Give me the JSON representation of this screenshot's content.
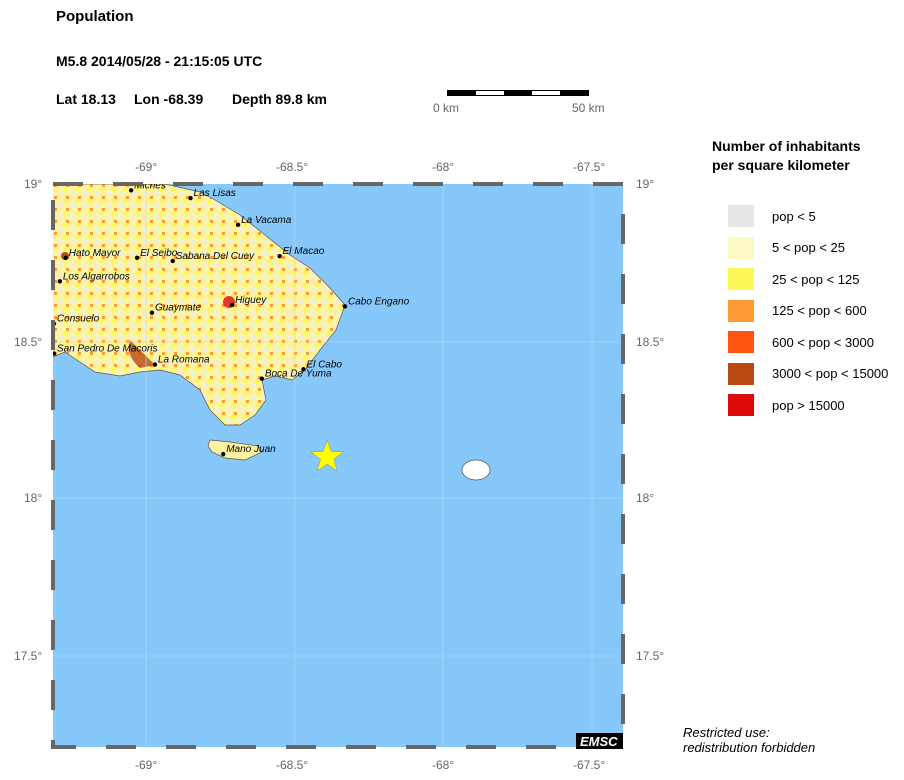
{
  "header": {
    "title": "Population",
    "event": "M5.8  2014/05/28 - 21:15:05 UTC",
    "lat": "Lat 18.13",
    "lon": "Lon -68.39",
    "depth": "Depth  89.8 km"
  },
  "scale_bar": {
    "start": "0 km",
    "end": "50 km"
  },
  "map": {
    "lon_ticks": [
      "-69°",
      "-68.5°",
      "-68°",
      "-67.5°"
    ],
    "lat_ticks": [
      "19°",
      "18.5°",
      "18°",
      "17.5°"
    ],
    "epicenter": {
      "lat": 18.13,
      "lon": -68.39,
      "color": "#ffff00"
    },
    "sea_color": "#87c8fa",
    "cities": [
      {
        "name": "Miches",
        "lon": -69.05,
        "lat": 18.98
      },
      {
        "name": "Las Lisas",
        "lon": -68.85,
        "lat": 18.955
      },
      {
        "name": "La Vacama",
        "lon": -68.69,
        "lat": 18.87
      },
      {
        "name": "Hato Mayor",
        "lon": -69.27,
        "lat": 18.765
      },
      {
        "name": "El Seibo",
        "lon": -69.03,
        "lat": 18.765
      },
      {
        "name": "Sabana Del Cuey",
        "lon": -68.91,
        "lat": 18.755
      },
      {
        "name": "El Macao",
        "lon": -68.55,
        "lat": 18.77
      },
      {
        "name": "Los Algarrobos",
        "lon": -69.29,
        "lat": 18.69
      },
      {
        "name": "Higuey",
        "lon": -68.71,
        "lat": 18.615
      },
      {
        "name": "Cabo Engano",
        "lon": -68.33,
        "lat": 18.61
      },
      {
        "name": "Guaymate",
        "lon": -68.98,
        "lat": 18.59
      },
      {
        "name": "Consuelo",
        "lon": -69.31,
        "lat": 18.555
      },
      {
        "name": "San Pedro De Macoris",
        "lon": -69.31,
        "lat": 18.46
      },
      {
        "name": "La Romana",
        "lon": -68.97,
        "lat": 18.425
      },
      {
        "name": "El Cabo",
        "lon": -68.47,
        "lat": 18.41
      },
      {
        "name": "Boca De Yuma",
        "lon": -68.61,
        "lat": 18.38
      },
      {
        "name": "Mano Juan",
        "lon": -68.74,
        "lat": 18.14
      }
    ],
    "logo": "EMSC"
  },
  "legend": {
    "title_line1": "Number of inhabitants",
    "title_line2": "per square kilometer",
    "items": [
      {
        "label": "pop < 5",
        "color": "#e6e6e6"
      },
      {
        "label": "5 < pop < 25",
        "color": "#fdf9c4"
      },
      {
        "label": "25 < pop < 125",
        "color": "#fdf85a"
      },
      {
        "label": "125 < pop < 600",
        "color": "#fd9a33"
      },
      {
        "label": "600 < pop < 3000",
        "color": "#fd5412"
      },
      {
        "label": "3000 < pop < 15000",
        "color": "#b84a12"
      },
      {
        "label": "pop > 15000",
        "color": "#dc0a0a"
      }
    ]
  },
  "footer": {
    "line1": "Restricted use:",
    "line2": "redistribution forbidden"
  }
}
